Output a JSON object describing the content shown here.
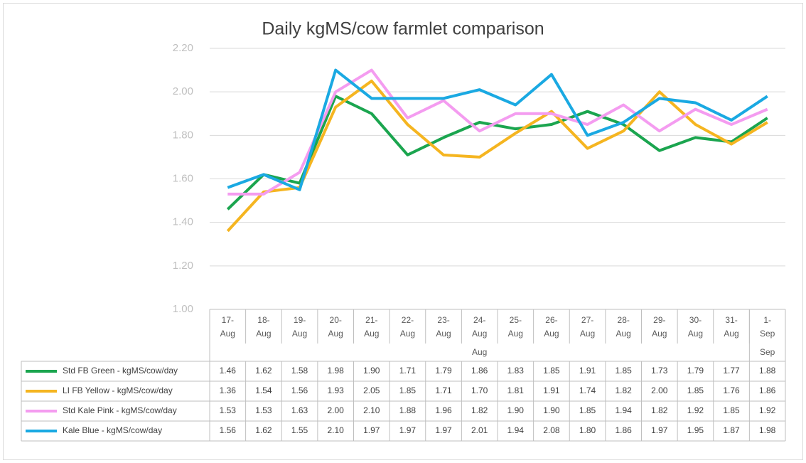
{
  "chart_data": {
    "type": "line",
    "title": "Daily kgMS/cow farmlet comparison",
    "categories": [
      "17-Aug",
      "18-Aug",
      "19-Aug",
      "20-Aug",
      "21-Aug",
      "22-Aug",
      "23-Aug",
      "24-Aug",
      "25-Aug",
      "26-Aug",
      "27-Aug",
      "28-Aug",
      "29-Aug",
      "30-Aug",
      "31-Aug",
      "1-Sep"
    ],
    "category_groups": [
      {
        "label": "Aug",
        "count": 15
      },
      {
        "label": "Sep",
        "count": 1
      }
    ],
    "ylim": [
      1.0,
      2.2
    ],
    "yticks": [
      {
        "value": 1.0,
        "label": "1.00"
      },
      {
        "value": 1.2,
        "label": "1.20"
      },
      {
        "value": 1.4,
        "label": "1.40"
      },
      {
        "value": 1.6,
        "label": "1.60"
      },
      {
        "value": 1.8,
        "label": "1.80"
      },
      {
        "value": 2.0,
        "label": "2.00"
      },
      {
        "value": 2.2,
        "label": "2.20"
      }
    ],
    "grid": true,
    "series": [
      {
        "name": "Std FB Green - kgMS/cow/day",
        "color": "#1ba54f",
        "values": [
          1.46,
          1.62,
          1.58,
          1.98,
          1.9,
          1.71,
          1.79,
          1.86,
          1.83,
          1.85,
          1.91,
          1.85,
          1.73,
          1.79,
          1.77,
          1.88
        ],
        "value_labels": [
          "1.46",
          "1.62",
          "1.58",
          "1.98",
          "1.90",
          "1.71",
          "1.79",
          "1.86",
          "1.83",
          "1.85",
          "1.91",
          "1.85",
          "1.73",
          "1.79",
          "1.77",
          "1.88"
        ]
      },
      {
        "name": "LI FB Yellow - kgMS/cow/day",
        "color": "#f5b520",
        "values": [
          1.36,
          1.54,
          1.56,
          1.93,
          2.05,
          1.85,
          1.71,
          1.7,
          1.81,
          1.91,
          1.74,
          1.82,
          2.0,
          1.85,
          1.76,
          1.86
        ],
        "value_labels": [
          "1.36",
          "1.54",
          "1.56",
          "1.93",
          "2.05",
          "1.85",
          "1.71",
          "1.70",
          "1.81",
          "1.91",
          "1.74",
          "1.82",
          "2.00",
          "1.85",
          "1.76",
          "1.86"
        ]
      },
      {
        "name": "Std Kale Pink - kgMS/cow/day",
        "color": "#f49cf0",
        "values": [
          1.53,
          1.53,
          1.63,
          2.0,
          2.1,
          1.88,
          1.96,
          1.82,
          1.9,
          1.9,
          1.85,
          1.94,
          1.82,
          1.92,
          1.85,
          1.92
        ],
        "value_labels": [
          "1.53",
          "1.53",
          "1.63",
          "2.00",
          "2.10",
          "1.88",
          "1.96",
          "1.82",
          "1.90",
          "1.90",
          "1.85",
          "1.94",
          "1.82",
          "1.92",
          "1.85",
          "1.92"
        ]
      },
      {
        "name": "Kale Blue - kgMS/cow/day",
        "color": "#1aa9e2",
        "values": [
          1.56,
          1.62,
          1.55,
          2.1,
          1.97,
          1.97,
          1.97,
          2.01,
          1.94,
          2.08,
          1.8,
          1.86,
          1.97,
          1.95,
          1.87,
          1.98
        ],
        "value_labels": [
          "1.56",
          "1.62",
          "1.55",
          "2.10",
          "1.97",
          "1.97",
          "1.97",
          "2.01",
          "1.94",
          "2.08",
          "1.80",
          "1.86",
          "1.97",
          "1.95",
          "1.87",
          "1.98"
        ]
      }
    ]
  }
}
